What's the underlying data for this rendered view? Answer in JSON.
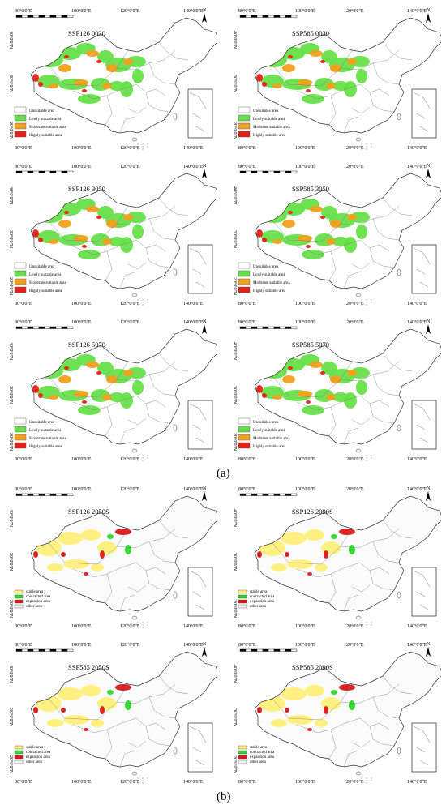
{
  "coords": {
    "top": [
      "80°0'0\"E",
      "100°0'0\"E",
      "120°0'0\"E",
      "140°0'0\"E"
    ],
    "left": [
      "40°0'0\"N",
      "30°0'0\"N",
      "20°0'0\"N"
    ]
  },
  "north": "N",
  "legend_a": [
    "Unsuitable area",
    "Lowly suitable area",
    "Moderate suitable area",
    "Highly suitable area"
  ],
  "legend_b": [
    "stable area",
    "contracted area",
    "expansion area",
    "other area"
  ],
  "colors": {
    "unsuitable": "#ffffff",
    "low": "#66e04a",
    "moderate": "#f0a020",
    "high": "#e8201a",
    "stable": "#fff07a",
    "contracted": "#2fd62a",
    "expansion": "#d81818",
    "other": "#f2f2f2"
  },
  "panels_a": [
    {
      "title": "SSP126 0030"
    },
    {
      "title": "SSP585 0030"
    },
    {
      "title": "SSP126 3050"
    },
    {
      "title": "SSP585 3050"
    },
    {
      "title": "SSP126 5070"
    },
    {
      "title": "SSP585 5070"
    }
  ],
  "panels_b": [
    {
      "title": "SSP126 2050S"
    },
    {
      "title": "SSP126 2090S"
    },
    {
      "title": "SSP585 2050S"
    },
    {
      "title": "SSP585 2090S"
    }
  ],
  "labels": {
    "a": "(a)",
    "b": "(b)"
  }
}
